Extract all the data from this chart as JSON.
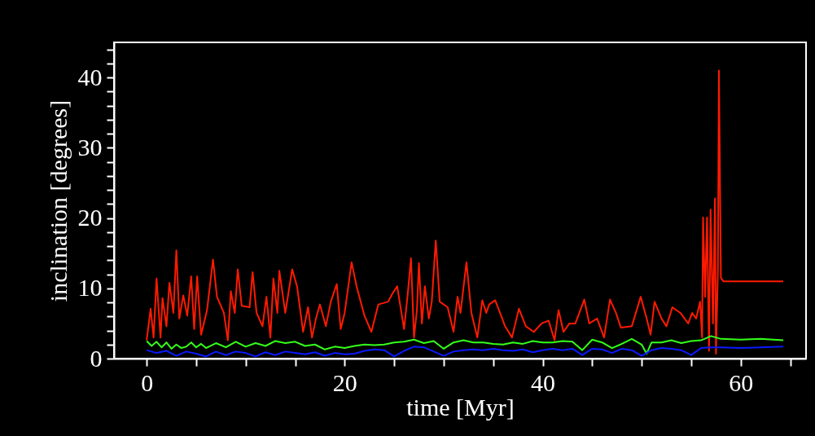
{
  "chart_data": {
    "type": "line",
    "xlabel": "time [Myr]",
    "ylabel": "inclination [degrees]",
    "xlim": [
      -3.3,
      66.6
    ],
    "ylim": [
      0,
      45
    ],
    "xticks": [
      0,
      {
        "value": 5,
        "label": null
      },
      {
        "value": 10,
        "label": null
      },
      {
        "value": 15,
        "label": null
      },
      20,
      {
        "value": 25,
        "label": null
      },
      {
        "value": 30,
        "label": null
      },
      {
        "value": 35,
        "label": null
      },
      40,
      {
        "value": 45,
        "label": null
      },
      {
        "value": 50,
        "label": null
      },
      {
        "value": 55,
        "label": null
      },
      60,
      {
        "value": 65,
        "label": null
      }
    ],
    "yticks": [
      0,
      {
        "value": 2,
        "label": null
      },
      {
        "value": 4,
        "label": null
      },
      {
        "value": 6,
        "label": null
      },
      {
        "value": 8,
        "label": null
      },
      10,
      {
        "value": 12,
        "label": null
      },
      {
        "value": 14,
        "label": null
      },
      {
        "value": 16,
        "label": null
      },
      {
        "value": 18,
        "label": null
      },
      20,
      {
        "value": 22,
        "label": null
      },
      {
        "value": 24,
        "label": null
      },
      {
        "value": 26,
        "label": null
      },
      {
        "value": 28,
        "label": null
      },
      30,
      {
        "value": 32,
        "label": null
      },
      {
        "value": 34,
        "label": null
      },
      {
        "value": 36,
        "label": null
      },
      {
        "value": 38,
        "label": null
      },
      40,
      {
        "value": 42,
        "label": null
      },
      {
        "value": 44,
        "label": null
      }
    ],
    "grid": false,
    "legend": false,
    "line_style": "solid",
    "marker": "none",
    "series": [
      {
        "color": "#ff1a00",
        "x": [
          0,
          0.4,
          0.7,
          1.0,
          1.4,
          1.6,
          2.0,
          2.3,
          2.7,
          3.0,
          3.3,
          3.7,
          4.1,
          4.5,
          4.8,
          5.1,
          5.5,
          6.1,
          6.7,
          7.1,
          7.8,
          8.2,
          8.5,
          8.9,
          9.2,
          9.6,
          10.4,
          10.7,
          11.1,
          11.7,
          12.1,
          12.5,
          12.8,
          13.2,
          13.4,
          14.0,
          14.7,
          15.2,
          15.8,
          16.3,
          16.7,
          17.1,
          17.5,
          18.1,
          18.6,
          19.2,
          19.6,
          20,
          20.7,
          21.2,
          22.0,
          22.7,
          23.4,
          24.4,
          24.8,
          25.3,
          26.0,
          26.4,
          26.7,
          27.0,
          27.3,
          27.5,
          27.8,
          28.1,
          28.5,
          28.8,
          29.2,
          29.6,
          30.4,
          31.0,
          31.4,
          31.7,
          32.3,
          32.8,
          33.4,
          33.9,
          34.3,
          34.6,
          35.2,
          35.8,
          36.2,
          36.9,
          37.6,
          38.3,
          39.1,
          39.9,
          40.6,
          41.2,
          41.6,
          42.1,
          42.7,
          43.3,
          44.2,
          44.7,
          45.5,
          46.2,
          46.8,
          47.4,
          47.9,
          49.0,
          49.9,
          50.5,
          50.9,
          51.3,
          52.0,
          52.5,
          53.1,
          53.9,
          54.7,
          55.1,
          55.5,
          55.9,
          56.1,
          56.2,
          56.4,
          56.6,
          56.8,
          56.96,
          57.2,
          57.4,
          57.5,
          57.7,
          57.8,
          58.0,
          58.25,
          64.3
        ],
        "values": [
          2.6,
          7.1,
          3,
          11.4,
          3,
          8.6,
          4.6,
          10.8,
          6.5,
          15.4,
          5.7,
          9,
          6.1,
          11.7,
          4.2,
          11.7,
          3.4,
          6.9,
          14.1,
          8.8,
          6.5,
          2.6,
          9.6,
          6.5,
          12.7,
          7.5,
          7.3,
          12.3,
          6.5,
          4.6,
          8.8,
          3,
          11.4,
          6.5,
          12.5,
          6.5,
          12.7,
          10.2,
          3.8,
          7.3,
          3,
          5.7,
          7.7,
          4.6,
          8.1,
          10.6,
          4.2,
          6.5,
          13.7,
          10.3,
          6.1,
          3.8,
          7.7,
          8.1,
          9.2,
          10.3,
          4.2,
          9.6,
          14.3,
          3,
          6.9,
          13.6,
          5,
          10.3,
          5.7,
          8.1,
          16.8,
          8.1,
          7.3,
          3.8,
          8.8,
          6.5,
          13.7,
          6.5,
          3,
          8.3,
          6.5,
          7.7,
          8.3,
          6.1,
          4.6,
          3,
          7.1,
          4.6,
          3.8,
          5,
          5.4,
          2.6,
          6.9,
          3.8,
          5,
          5,
          8.4,
          5,
          5.7,
          3,
          8.4,
          6.5,
          4.4,
          4.6,
          8.8,
          5.7,
          3.4,
          8.1,
          5.7,
          4.6,
          7.3,
          6.5,
          5,
          6.5,
          5.7,
          8.1,
          3,
          20.1,
          8.8,
          20.1,
          1.1,
          21.2,
          5,
          22.8,
          0.7,
          12.7,
          41,
          11.5,
          11,
          11
        ]
      },
      {
        "color": "#33ff1a",
        "x": [
          0,
          0.5,
          1,
          1.5,
          2,
          2.5,
          3,
          3.5,
          4,
          4.5,
          5,
          5.5,
          6,
          7,
          8,
          9,
          10,
          11,
          12,
          13,
          14,
          15,
          16,
          17,
          18,
          19,
          20,
          21,
          22,
          23,
          24,
          25,
          26,
          27,
          28,
          29,
          30,
          31,
          32,
          33,
          34,
          35,
          36,
          37,
          38,
          39,
          40,
          41,
          42,
          43,
          44,
          45,
          46,
          47,
          48,
          49,
          50,
          50.5,
          51,
          52,
          53,
          54,
          55,
          56,
          57,
          58,
          60,
          62,
          64.3
        ],
        "values": [
          2.5,
          1.8,
          2.4,
          1.6,
          2.3,
          1.4,
          2.0,
          1.5,
          1.7,
          2.3,
          1.6,
          2.1,
          1.5,
          2.2,
          1.6,
          2.4,
          1.7,
          2.2,
          1.8,
          2.5,
          2.2,
          2.4,
          1.8,
          2.0,
          1.3,
          1.7,
          1.5,
          1.8,
          2.0,
          1.9,
          2.0,
          2.3,
          2.4,
          2.7,
          2.2,
          2.5,
          1.4,
          2.3,
          2.6,
          2.3,
          2.3,
          2.1,
          2.0,
          2.3,
          2.1,
          2.5,
          2.3,
          2.3,
          2.5,
          2.4,
          1.2,
          2.7,
          2.3,
          1.5,
          2.1,
          2.8,
          2.0,
          0.7,
          2.3,
          2.3,
          2.6,
          2.2,
          2.5,
          2.6,
          3.2,
          2.8,
          2.7,
          2.8,
          2.6
        ]
      },
      {
        "color": "#0a1aff",
        "x": [
          0,
          1,
          2,
          3,
          4,
          5,
          6,
          7,
          8,
          9,
          10,
          11,
          12,
          13,
          14,
          15,
          16,
          17,
          18,
          19,
          20,
          21,
          22,
          23,
          24,
          25,
          26,
          27,
          28,
          29,
          30,
          31,
          32,
          33,
          34,
          35,
          36,
          37,
          38,
          39,
          40,
          41,
          42,
          43,
          44,
          45,
          46,
          47,
          48,
          49,
          50,
          51,
          52,
          53,
          54,
          55,
          56,
          57,
          58,
          60,
          62,
          64.3
        ],
        "values": [
          1.2,
          0.8,
          1.1,
          0.4,
          1.0,
          0.7,
          0.3,
          1.0,
          0.5,
          1.0,
          0.8,
          0.3,
          0.9,
          0.5,
          1.0,
          0.8,
          0.6,
          0.9,
          0.4,
          0.8,
          0.6,
          0.7,
          1.1,
          1.3,
          1.2,
          0.3,
          1.1,
          1.7,
          1.6,
          1.0,
          0.4,
          1.0,
          1.2,
          1.3,
          1.2,
          1.4,
          1.2,
          1.1,
          1.3,
          0.9,
          1.2,
          1.4,
          1.2,
          1.4,
          0.5,
          1.4,
          1.3,
          0.8,
          1.4,
          1.2,
          0.4,
          1.2,
          1.5,
          1.4,
          1.2,
          0.5,
          1.5,
          1.6,
          1.6,
          1.5,
          1.6,
          1.7
        ]
      }
    ]
  }
}
